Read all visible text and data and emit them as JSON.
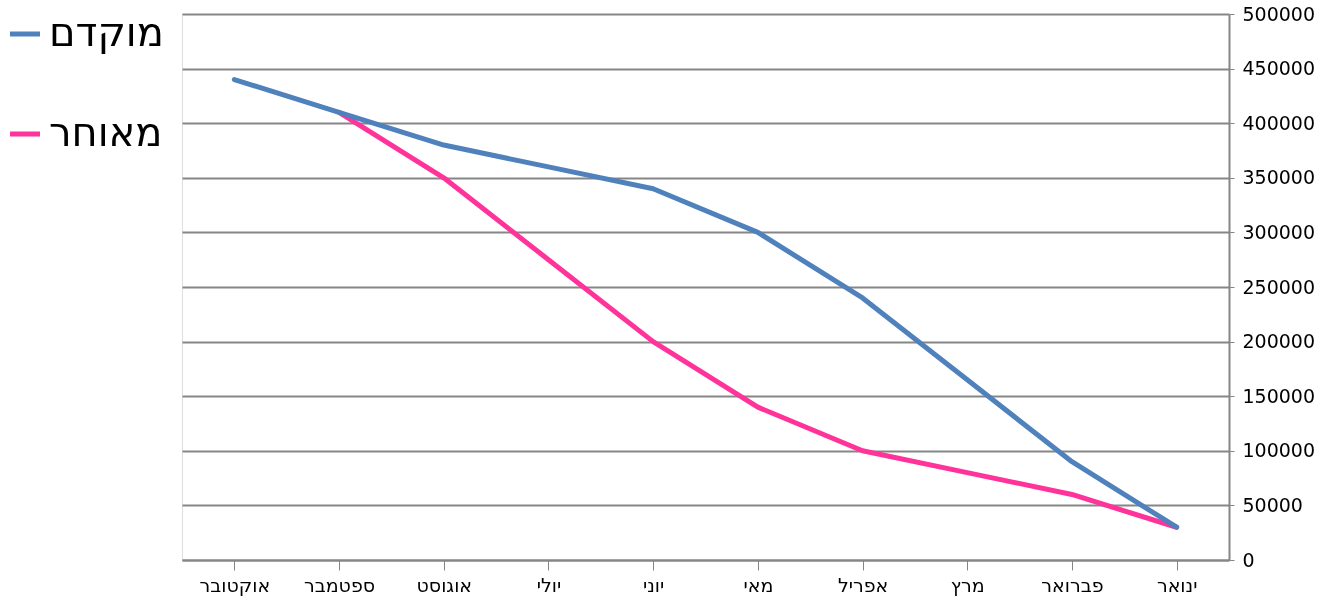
{
  "chart_data": {
    "type": "line",
    "categories": [
      "אוקטובר",
      "ספטמבר",
      "אוגוסט",
      "יולי",
      "יוני",
      "מאי",
      "אפריל",
      "מרץ",
      "פברואר",
      "ינואר"
    ],
    "series": [
      {
        "name": "מוקדם",
        "color": "#4f81bd",
        "values": [
          440000,
          410000,
          380000,
          360000,
          340000,
          300000,
          240000,
          165000,
          90000,
          30000
        ]
      },
      {
        "name": "מאוחר",
        "color": "#ff3399",
        "values": [
          null,
          410000,
          350000,
          275000,
          200000,
          140000,
          100000,
          80000,
          60000,
          30000
        ]
      }
    ],
    "ylim": [
      0,
      500000
    ],
    "yticks": [
      0,
      50000,
      100000,
      150000,
      200000,
      250000,
      300000,
      350000,
      400000,
      450000,
      500000
    ],
    "grid": "y",
    "legend": "left",
    "marker": "none",
    "line_style": "solid"
  }
}
